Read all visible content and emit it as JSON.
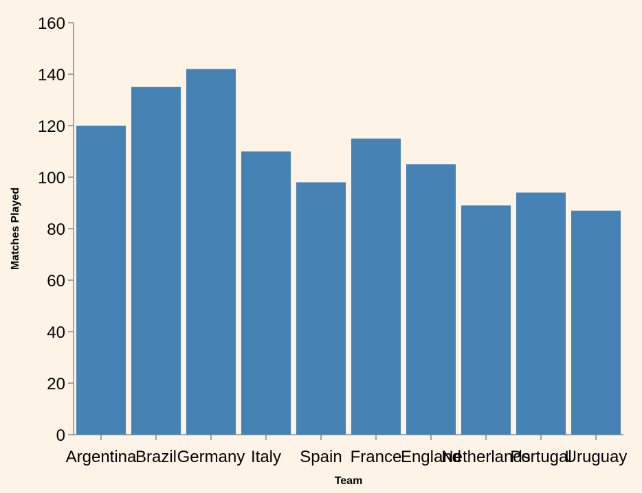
{
  "chart_data": {
    "type": "bar",
    "categories": [
      "Argentina",
      "Brazil",
      "Germany",
      "Italy",
      "Spain",
      "France",
      "England",
      "Netherlands",
      "Portugal",
      "Uruguay"
    ],
    "values": [
      120,
      135,
      142,
      110,
      98,
      115,
      105,
      89,
      94,
      87
    ],
    "xlabel": "Team",
    "ylabel": "Matches Played",
    "ylim": [
      0,
      160
    ],
    "yticks": [
      0,
      20,
      40,
      60,
      80,
      100,
      120,
      140,
      160
    ],
    "grid": false,
    "colors": {
      "bar": "#4682b4",
      "background": "#fdf3e6",
      "axis": "#888888"
    }
  }
}
